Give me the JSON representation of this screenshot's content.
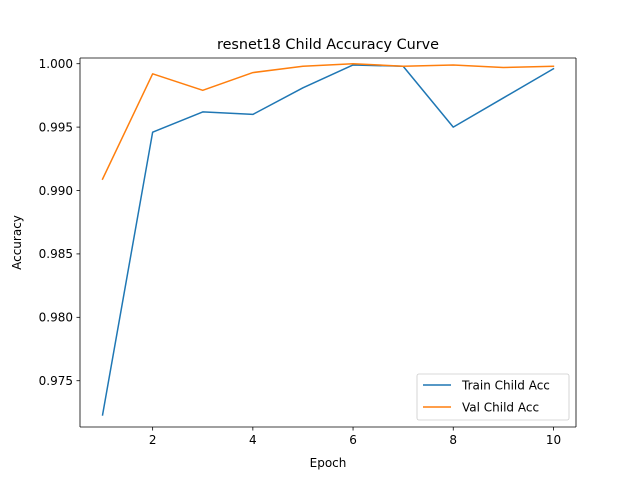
{
  "chart_data": {
    "type": "line",
    "title": "resnet18 Child Accuracy Curve",
    "xlabel": "Epoch",
    "ylabel": "Accuracy",
    "x": [
      1,
      2,
      3,
      4,
      5,
      6,
      7,
      8,
      9,
      10
    ],
    "xlim": [
      0.55,
      10.45
    ],
    "ylim": [
      0.97135,
      1.00045
    ],
    "xticks": [
      2,
      4,
      6,
      8,
      10
    ],
    "yticks": [
      0.975,
      0.98,
      0.985,
      0.99,
      0.995,
      1.0
    ],
    "xtick_labels": [
      "2",
      "4",
      "6",
      "8",
      "10"
    ],
    "ytick_labels": [
      "0.975",
      "0.980",
      "0.985",
      "0.990",
      "0.995",
      "1.000"
    ],
    "grid": false,
    "legend_position": "lower-right",
    "series": [
      {
        "name": "Train Child Acc",
        "color": "#1f77b4",
        "values": [
          0.9723,
          0.9946,
          0.9962,
          0.996,
          0.9981,
          0.9999,
          0.9998,
          0.995,
          0.9973,
          0.9996
        ]
      },
      {
        "name": "Val Child Acc",
        "color": "#ff7f0e",
        "values": [
          0.9909,
          0.9992,
          0.9979,
          0.9993,
          0.9998,
          1.0,
          0.9998,
          0.9999,
          0.9997,
          0.9998
        ]
      }
    ]
  }
}
